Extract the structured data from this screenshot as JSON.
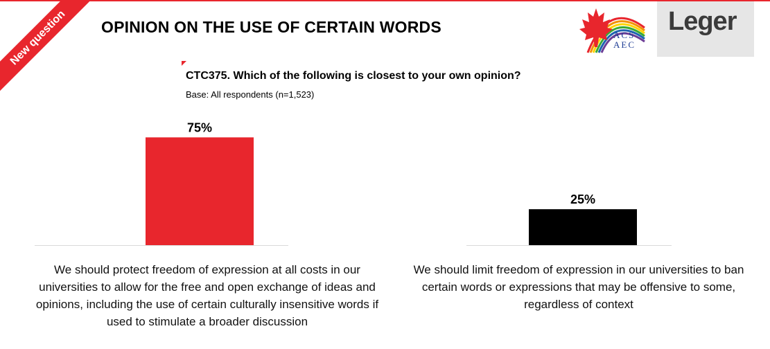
{
  "header": {
    "banner": "New question",
    "title": "OPINION ON THE USE OF CERTAIN WORDS",
    "acs_logo": {
      "line1": "ACS",
      "line2": "AEC",
      "icon": "maple-leaf-rainbow-icon"
    },
    "leger_logo": {
      "text": "Leger"
    }
  },
  "question": {
    "text": "CTC375. Which of the following is closest to your own opinion?",
    "base": "Base: All respondents (n=1,523)"
  },
  "colors": {
    "accent": "#e8262d",
    "bar_black": "#000000"
  },
  "chart_data": {
    "type": "bar",
    "categories": [
      "We should protect freedom of expression at all costs in our universities to allow for the free and open exchange of ideas and opinions, including the use of certain culturally insensitive words if used to stimulate a broader discussion",
      "We should limit freedom of expression in our universities to ban certain words or expressions that may be offensive to some, regardless of context"
    ],
    "values": [
      75,
      25
    ],
    "data_labels": [
      "75%",
      "25%"
    ],
    "colors": [
      "#e8262d",
      "#000000"
    ],
    "ylim": [
      0,
      80
    ],
    "title": "",
    "xlabel": "",
    "ylabel": ""
  }
}
